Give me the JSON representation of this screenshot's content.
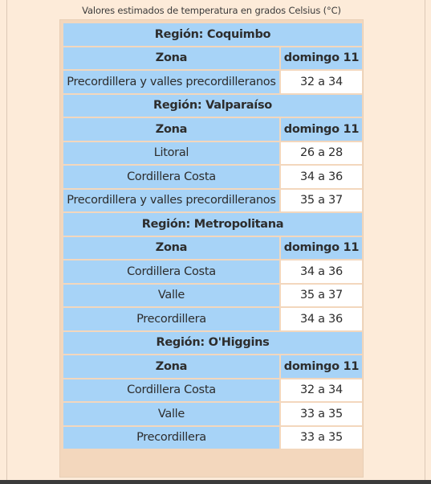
{
  "caption": "Valores estimados de temperatura en grados Celsius (°C)",
  "regions": [
    {
      "title": "Región: Coquimbo",
      "zone_header": "Zona",
      "day_header": "domingo 11",
      "rows": [
        {
          "zone": "Precordillera y valles precordilleranos",
          "value": "32 a 34"
        }
      ]
    },
    {
      "title": "Región: Valparaíso",
      "zone_header": "Zona",
      "day_header": "domingo 11",
      "rows": [
        {
          "zone": "Litoral",
          "value": "26 a 28"
        },
        {
          "zone": "Cordillera Costa",
          "value": "34 a 36"
        },
        {
          "zone": "Precordillera y valles precordilleranos",
          "value": "35 a 37"
        }
      ]
    },
    {
      "title": "Región: Metropolitana",
      "zone_header": "Zona",
      "day_header": "domingo 11",
      "rows": [
        {
          "zone": "Cordillera Costa",
          "value": "34 a 36"
        },
        {
          "zone": "Valle",
          "value": "35 a 37"
        },
        {
          "zone": "Precordillera",
          "value": "34 a 36"
        }
      ]
    },
    {
      "title": "Región: O'Higgins",
      "zone_header": "Zona",
      "day_header": "domingo 11",
      "rows": [
        {
          "zone": "Cordillera Costa",
          "value": "32 a 34"
        },
        {
          "zone": "Valle",
          "value": "33 a 35"
        },
        {
          "zone": "Precordillera",
          "value": "33 a 35"
        }
      ]
    }
  ],
  "colors": {
    "page_background": "#fdebd9",
    "header_cell": "#a7d3f7",
    "value_cell": "#ffffff"
  }
}
